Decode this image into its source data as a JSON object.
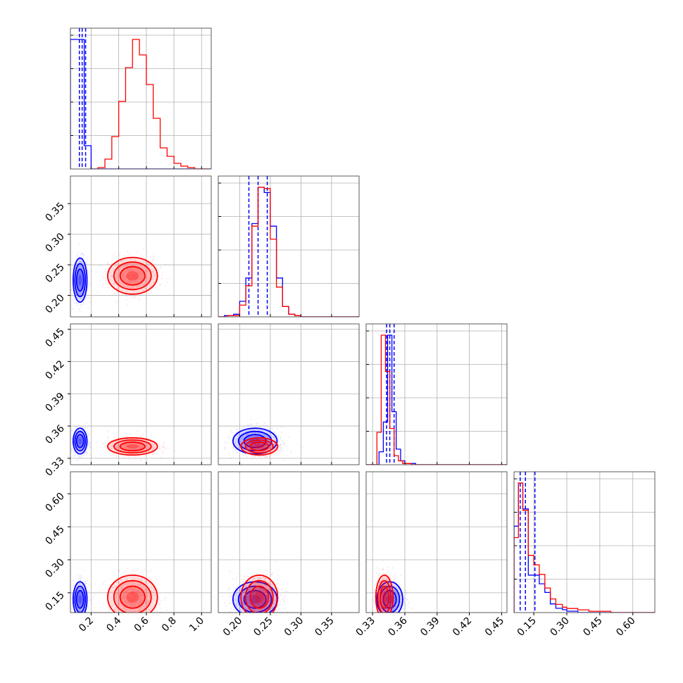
{
  "chart_data": {
    "type": "corner",
    "grid": true,
    "parameters": [
      {
        "range": [
          0.05,
          1.07
        ],
        "ticks": [
          0.2,
          0.4,
          0.6,
          0.8,
          1.0
        ],
        "tick_labels": [
          "0.2",
          "0.4",
          "0.6",
          "0.8",
          "1.0"
        ]
      },
      {
        "range": [
          0.165,
          0.395
        ],
        "ticks": [
          0.2,
          0.25,
          0.3,
          0.35
        ],
        "tick_labels": [
          "0.20",
          "0.25",
          "0.30",
          "0.35"
        ]
      },
      {
        "range": [
          0.324,
          0.455
        ],
        "ticks": [
          0.33,
          0.36,
          0.39,
          0.42,
          0.45
        ],
        "tick_labels": [
          "0.33",
          "0.36",
          "0.39",
          "0.42",
          "0.45"
        ]
      },
      {
        "range": [
          0.06,
          0.7
        ],
        "ticks": [
          0.15,
          0.3,
          0.45,
          0.6
        ],
        "tick_labels": [
          "0.15",
          "0.30",
          "0.45",
          "0.60"
        ]
      }
    ],
    "series": [
      {
        "color": "#0000ff",
        "histograms": [
          {
            "edges": [
              0.05,
              0.1,
              0.15,
              0.2,
              0.25,
              1.07
            ],
            "counts": [
              100,
              100,
              18,
              0,
              0
            ],
            "quantiles": [
              0.115,
              0.135,
              0.16
            ]
          },
          {
            "edges": [
              0.16,
              0.175,
              0.19,
              0.2,
              0.21,
              0.22,
              0.23,
              0.24,
              0.25,
              0.26,
              0.27,
              0.28,
              0.29,
              0.3,
              0.395
            ],
            "counts": [
              0,
              1,
              2,
              12,
              30,
              72,
              100,
              96,
              70,
              30,
              8,
              2,
              1,
              0
            ],
            "quantiles": [
              0.215,
              0.23,
              0.245
            ]
          },
          {
            "edges": [
              0.324,
              0.336,
              0.34,
              0.344,
              0.348,
              0.352,
              0.356,
              0.36,
              0.364,
              0.37,
              0.455
            ],
            "counts": [
              0,
              10,
              33,
              100,
              41,
              12,
              3,
              1,
              1,
              0
            ],
            "quantiles": [
              0.343,
              0.346,
              0.35
            ]
          },
          {
            "edges": [
              0.06,
              0.08,
              0.1,
              0.125,
              0.15,
              0.175,
              0.2,
              0.225,
              0.25,
              0.28,
              0.3,
              0.35,
              0.7
            ],
            "counts": [
              60,
              90,
              72,
              26,
              26,
              20,
              14,
              6,
              3,
              2,
              1,
              0
            ],
            "quantiles": [
              0.088,
              0.112,
              0.155
            ]
          }
        ],
        "centers": [
          0.12,
          0.225,
          0.346,
          0.12
        ],
        "spreads": [
          0.025,
          0.018,
          0.006,
          0.04
        ]
      },
      {
        "color": "#ff0000",
        "histograms": [
          {
            "edges": [
              0.25,
              0.3,
              0.35,
              0.4,
              0.45,
              0.5,
              0.55,
              0.6,
              0.65,
              0.7,
              0.75,
              0.8,
              0.85,
              0.9,
              0.95,
              1.0,
              1.05
            ],
            "counts": [
              1,
              7,
              23,
              48,
              72,
              92,
              81,
              60,
              36,
              15,
              9,
              4,
              2,
              1,
              0,
              0
            ],
            "quantiles": []
          },
          {
            "edges": [
              0.16,
              0.18,
              0.2,
              0.21,
              0.22,
              0.23,
              0.24,
              0.25,
              0.26,
              0.27,
              0.28,
              0.29,
              0.3,
              0.395
            ],
            "counts": [
              0,
              1,
              9,
              24,
              70,
              100,
              99,
              60,
              23,
              8,
              2,
              1,
              0
            ],
            "quantiles": []
          },
          {
            "edges": [
              0.324,
              0.334,
              0.338,
              0.342,
              0.346,
              0.35,
              0.354,
              0.358,
              0.362,
              0.366,
              0.455
            ],
            "counts": [
              0,
              25,
              100,
              72,
              28,
              7,
              3,
              1,
              1,
              0
            ],
            "quantiles": []
          },
          {
            "edges": [
              0.06,
              0.08,
              0.1,
              0.125,
              0.15,
              0.175,
              0.2,
              0.225,
              0.25,
              0.28,
              0.3,
              0.35,
              0.4,
              0.45,
              0.5,
              0.7
            ],
            "counts": [
              55,
              95,
              75,
              42,
              35,
              28,
              18,
              10,
              6,
              4,
              3,
              2,
              1,
              1,
              0
            ],
            "quantiles": []
          }
        ],
        "centers": [
          0.5,
          0.232,
          0.341,
          0.13
        ],
        "spreads": [
          0.09,
          0.015,
          0.004,
          0.05
        ]
      }
    ]
  }
}
